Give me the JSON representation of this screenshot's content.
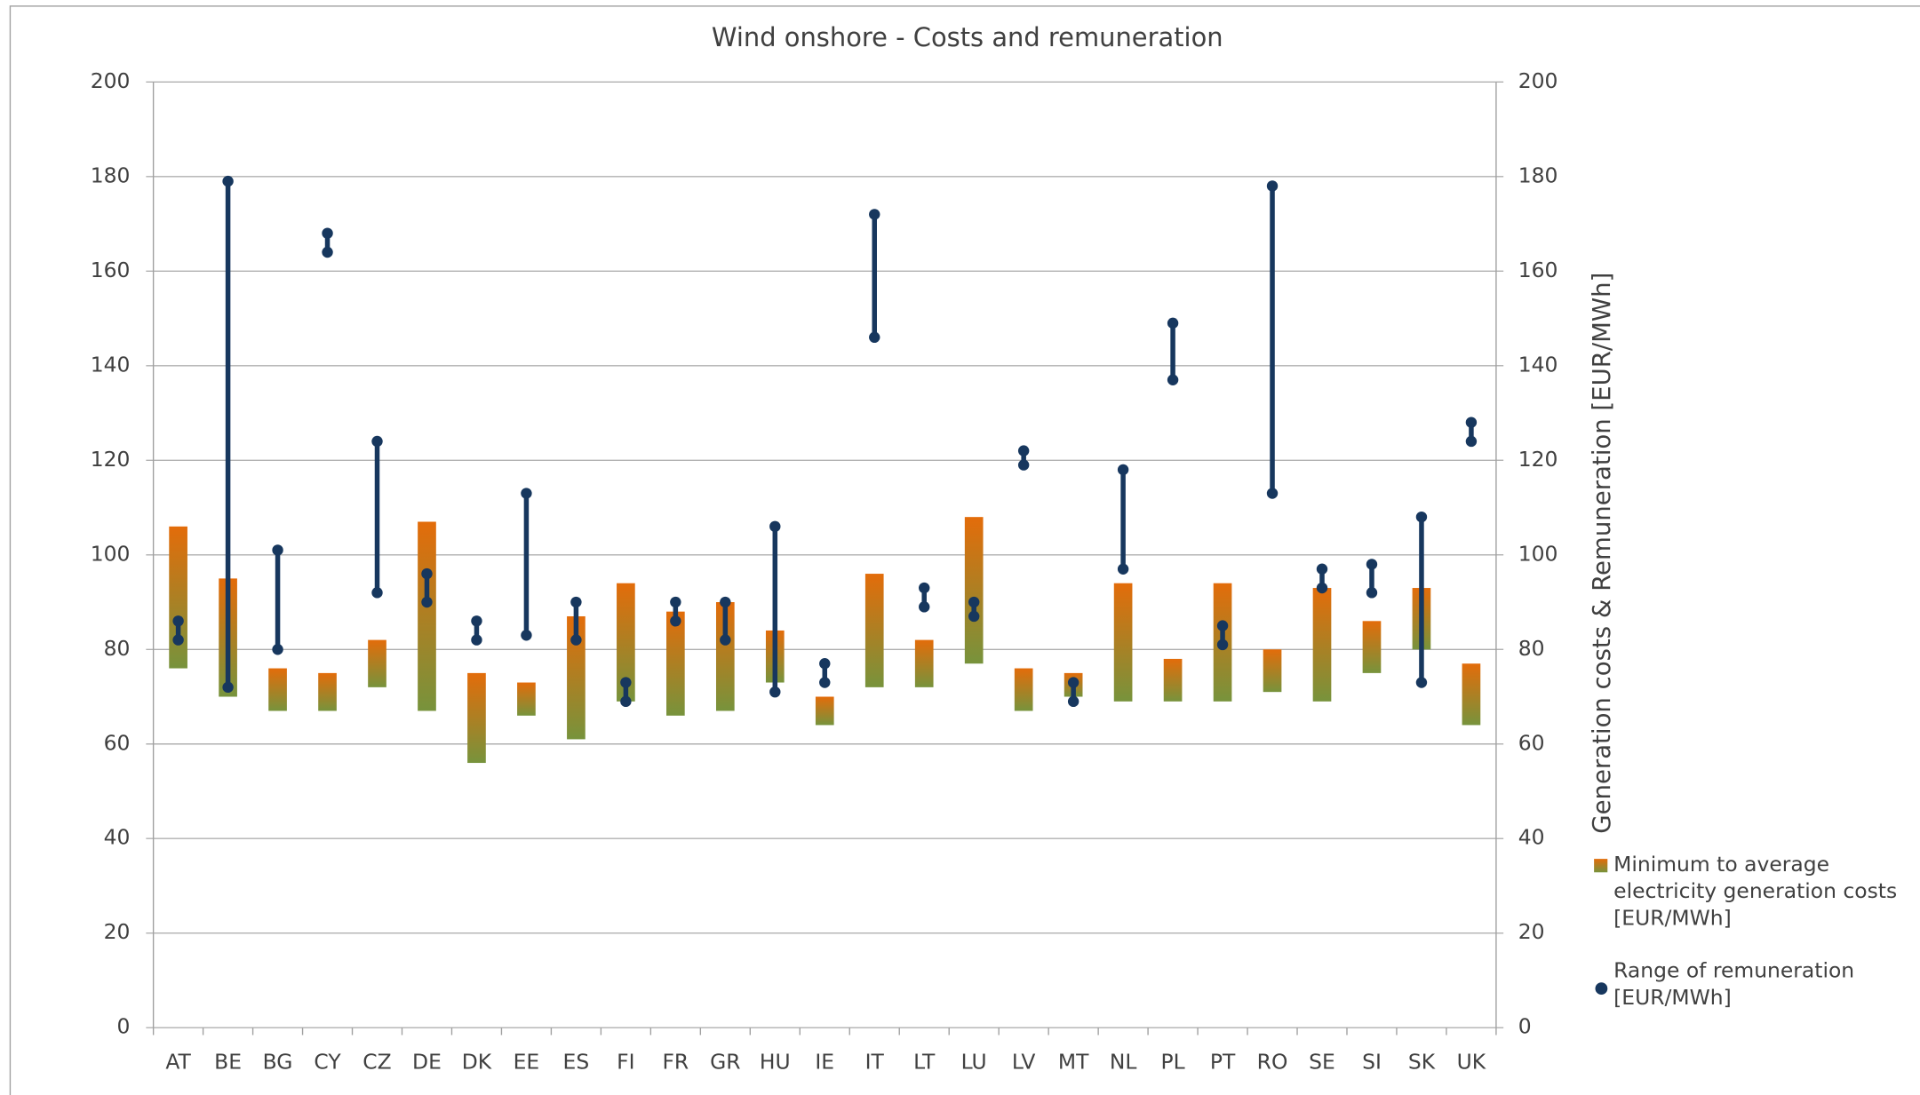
{
  "chart_data": {
    "type": "floating-range",
    "title": "Wind onshore - Costs and remuneration",
    "y2_label": "Generation costs & Remuneration [EUR/MWh]",
    "categories": [
      "AT",
      "BE",
      "BG",
      "CY",
      "CZ",
      "DE",
      "DK",
      "EE",
      "ES",
      "FI",
      "FR",
      "GR",
      "HU",
      "IE",
      "IT",
      "LT",
      "LU",
      "LV",
      "MT",
      "NL",
      "PL",
      "PT",
      "RO",
      "SE",
      "SI",
      "SK",
      "UK"
    ],
    "series": [
      {
        "name": "Minimum to average electricity generation costs [EUR/MWh]",
        "colors": [
          "#e36c0a",
          "#77933c"
        ],
        "min": [
          76,
          70,
          67,
          67,
          72,
          67,
          56,
          66,
          61,
          69,
          66,
          67,
          73,
          64,
          72,
          72,
          77,
          67,
          70,
          69,
          69,
          69,
          71,
          69,
          75,
          80,
          64
        ],
        "max": [
          106,
          95,
          76,
          75,
          82,
          107,
          75,
          73,
          87,
          94,
          88,
          90,
          84,
          70,
          96,
          82,
          108,
          76,
          75,
          94,
          78,
          94,
          80,
          93,
          86,
          93,
          77
        ]
      },
      {
        "name": "Range of remuneration [EUR/MWh]",
        "color": "#17375e",
        "min": [
          82,
          72,
          80,
          164,
          92,
          90,
          82,
          83,
          82,
          69,
          86,
          82,
          71,
          73,
          146,
          89,
          87,
          119,
          69,
          97,
          137,
          81,
          113,
          93,
          92,
          73,
          124
        ],
        "max": [
          86,
          179,
          101,
          168,
          124,
          96,
          86,
          113,
          90,
          73,
          90,
          90,
          106,
          77,
          172,
          93,
          90,
          122,
          73,
          118,
          149,
          85,
          178,
          97,
          98,
          108,
          128
        ]
      }
    ],
    "ylim": [
      0,
      200
    ],
    "yticks": [
      0,
      20,
      40,
      60,
      80,
      100,
      120,
      140,
      160,
      180,
      200
    ],
    "y2lim": [
      0,
      200
    ],
    "y2ticks": [
      0,
      20,
      40,
      60,
      80,
      100,
      120,
      140,
      160,
      180,
      200
    ],
    "grid": true,
    "legend": "right"
  }
}
